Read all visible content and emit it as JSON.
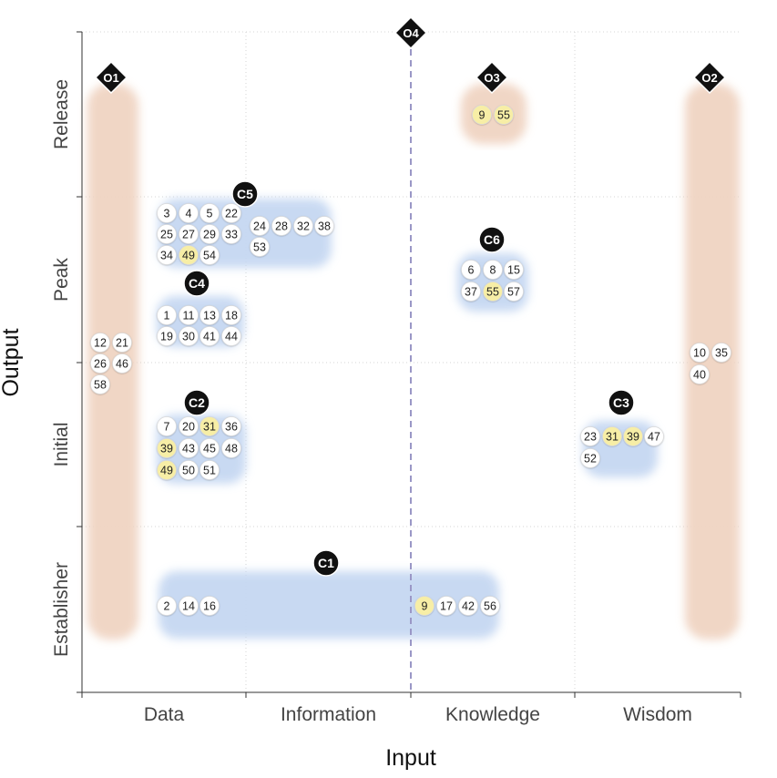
{
  "chart_data": {
    "type": "scatter",
    "xlabel": "Input",
    "ylabel": "Output",
    "x_categories": [
      "Data",
      "Information",
      "Knowledge",
      "Wisdom"
    ],
    "y_categories": [
      "Establisher",
      "Initial",
      "Peak",
      "Release"
    ],
    "grid": true,
    "highlight_color": "#f7eea6",
    "cluster_blob_color": "#c6d8f2",
    "outlier_blob_color": "#f0d4c2",
    "clusters": [
      {
        "label": "C1",
        "x": "Data–Knowledge",
        "y": "Establisher",
        "items": [
          "2",
          "14",
          "16",
          "9",
          "17",
          "42",
          "56"
        ],
        "highlighted": [
          "9"
        ]
      },
      {
        "label": "C2",
        "x": "Data",
        "y": "Initial",
        "items": [
          "7",
          "20",
          "31",
          "36",
          "39",
          "43",
          "45",
          "48",
          "49",
          "50",
          "51"
        ],
        "highlighted": [
          "31",
          "39",
          "49"
        ]
      },
      {
        "label": "C3",
        "x": "Wisdom",
        "y": "Initial",
        "items": [
          "23",
          "31",
          "39",
          "47",
          "52"
        ],
        "highlighted": [
          "31",
          "39"
        ]
      },
      {
        "label": "C4",
        "x": "Data",
        "y": "Peak",
        "items": [
          "1",
          "11",
          "13",
          "18",
          "19",
          "30",
          "41",
          "44"
        ],
        "highlighted": []
      },
      {
        "label": "C5",
        "x": "Data–Information",
        "y": "Peak",
        "items": [
          "3",
          "4",
          "5",
          "22",
          "24",
          "28",
          "32",
          "38",
          "25",
          "27",
          "29",
          "33",
          "53",
          "34",
          "49",
          "54"
        ],
        "highlighted": [
          "49"
        ]
      },
      {
        "label": "C6",
        "x": "Knowledge",
        "y": "Peak",
        "items": [
          "6",
          "8",
          "15",
          "37",
          "55",
          "57"
        ],
        "highlighted": [
          "55"
        ]
      }
    ],
    "outliers": [
      {
        "label": "O1",
        "x": "Data (edge)",
        "y": "Establisher–Release",
        "items": [
          "12",
          "21",
          "26",
          "46",
          "58"
        ],
        "highlighted": []
      },
      {
        "label": "O2",
        "x": "Wisdom (edge)",
        "y": "Establisher–Release",
        "items": [
          "10",
          "35",
          "40"
        ],
        "highlighted": []
      },
      {
        "label": "O3",
        "x": "Knowledge",
        "y": "Release",
        "items": [
          "9",
          "55"
        ],
        "highlighted": [
          "9",
          "55"
        ]
      },
      {
        "label": "O4",
        "x": "Information/Knowledge boundary",
        "y": "all",
        "items": [],
        "highlighted": []
      }
    ]
  }
}
